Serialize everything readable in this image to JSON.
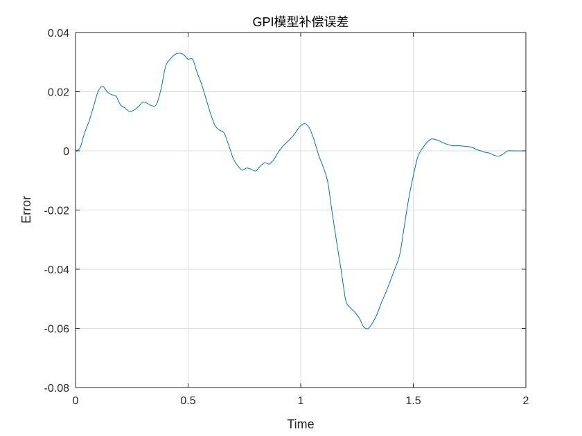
{
  "chart_data": {
    "type": "line",
    "title": "GPI模型补偿误差",
    "xlabel": "Time",
    "ylabel": "Error",
    "xlim": [
      0,
      2
    ],
    "ylim": [
      -0.08,
      0.04
    ],
    "xticks": [
      0,
      0.5,
      1,
      1.5,
      2
    ],
    "xtick_labels": [
      "0",
      "0.5",
      "1",
      "1.5",
      "2"
    ],
    "yticks": [
      -0.08,
      -0.06,
      -0.04,
      -0.02,
      0,
      0.02,
      0.04
    ],
    "ytick_labels": [
      "-0.08",
      "-0.06",
      "-0.04",
      "-0.02",
      "0",
      "0.02",
      "0.04"
    ],
    "grid": true,
    "series": [
      {
        "color": "#0072BD",
        "x": [
          0,
          0.02,
          0.04,
          0.06,
          0.08,
          0.1,
          0.12,
          0.14,
          0.16,
          0.18,
          0.2,
          0.22,
          0.24,
          0.26,
          0.28,
          0.3,
          0.32,
          0.34,
          0.36,
          0.38,
          0.4,
          0.42,
          0.44,
          0.46,
          0.48,
          0.5,
          0.52,
          0.54,
          0.56,
          0.58,
          0.6,
          0.62,
          0.64,
          0.66,
          0.68,
          0.7,
          0.72,
          0.74,
          0.76,
          0.78,
          0.8,
          0.82,
          0.84,
          0.86,
          0.87,
          0.88,
          0.9,
          0.92,
          0.94,
          0.96,
          0.98,
          1.0,
          1.02,
          1.04,
          1.06,
          1.08,
          1.1,
          1.12,
          1.14,
          1.16,
          1.18,
          1.2,
          1.22,
          1.24,
          1.26,
          1.28,
          1.3,
          1.32,
          1.34,
          1.36,
          1.38,
          1.4,
          1.42,
          1.44,
          1.46,
          1.48,
          1.5,
          1.52,
          1.54,
          1.56,
          1.58,
          1.6,
          1.62,
          1.64,
          1.66,
          1.68,
          1.7,
          1.72,
          1.74,
          1.76,
          1.78,
          1.8,
          1.82,
          1.84,
          1.86,
          1.88,
          1.9,
          1.92,
          1.94,
          1.96,
          1.98,
          2.0
        ],
        "y": [
          0,
          0.001,
          0.006,
          0.01,
          0.015,
          0.02,
          0.0218,
          0.02,
          0.019,
          0.0185,
          0.0155,
          0.0145,
          0.0133,
          0.0138,
          0.015,
          0.0165,
          0.016,
          0.0152,
          0.0158,
          0.021,
          0.0285,
          0.031,
          0.0325,
          0.033,
          0.0325,
          0.031,
          0.031,
          0.0265,
          0.0225,
          0.0175,
          0.0125,
          0.0085,
          0.007,
          0.006,
          0.002,
          -0.0025,
          -0.005,
          -0.0065,
          -0.0058,
          -0.0062,
          -0.0068,
          -0.0052,
          -0.004,
          -0.0045,
          -0.0038,
          -0.003,
          -0.0005,
          0.0015,
          0.003,
          0.0045,
          0.0065,
          0.0085,
          0.0092,
          0.0075,
          0.0035,
          -0.0015,
          -0.0055,
          -0.0105,
          -0.021,
          -0.031,
          -0.0405,
          -0.0505,
          -0.053,
          -0.0545,
          -0.0565,
          -0.0595,
          -0.06,
          -0.058,
          -0.055,
          -0.051,
          -0.0475,
          -0.0435,
          -0.0395,
          -0.035,
          -0.0255,
          -0.016,
          -0.0085,
          -0.002,
          0.0008,
          0.0028,
          0.004,
          0.0038,
          0.0032,
          0.0025,
          0.002,
          0.0017,
          0.0018,
          0.0016,
          0.0015,
          0.0012,
          0.0005,
          0.0,
          -0.0005,
          -0.0008,
          -0.0015,
          -0.0018,
          -0.001,
          0.0,
          0.0,
          0.0,
          0.0,
          0.0
        ]
      }
    ]
  }
}
